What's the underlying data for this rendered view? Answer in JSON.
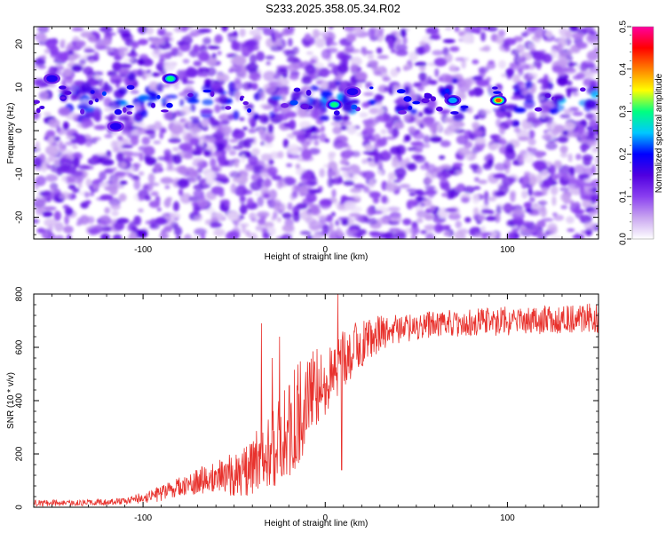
{
  "title": "S233.2025.358.05.34.R02",
  "chart_data": [
    {
      "type": "heatmap",
      "xlabel": "Height of straight line (km)",
      "ylabel": "Frequency (Hz)",
      "xlim": [
        -160,
        150
      ],
      "ylim": [
        -25,
        24
      ],
      "x_ticks": [
        -100,
        0,
        100
      ],
      "y_ticks": [
        -20,
        -10,
        0,
        10,
        20
      ],
      "colorbar": {
        "label": "Normalized spectral amplitude",
        "range": [
          0.0,
          0.5
        ],
        "ticks": [
          0.0,
          0.1,
          0.2,
          0.3,
          0.4,
          0.5
        ],
        "colors": [
          "#ffffff",
          "#c9a6f0",
          "#8a3ff0",
          "#5000e0",
          "#0000ff",
          "#00c8ff",
          "#00ff80",
          "#ffff00",
          "#ff8000",
          "#ff0000",
          "#ff00a0"
        ]
      },
      "ridge": {
        "frequency_hz": 7,
        "peaks": [
          {
            "x": -85,
            "y": 12,
            "v": 0.34
          },
          {
            "x": 5,
            "y": 6,
            "v": 0.3
          },
          {
            "x": 95,
            "y": 7,
            "v": 0.42
          },
          {
            "x": 70,
            "y": 7,
            "v": 0.26
          },
          {
            "x": 15,
            "y": 9,
            "v": 0.22
          },
          {
            "x": -150,
            "y": 12,
            "v": 0.2
          },
          {
            "x": -115,
            "y": 1,
            "v": 0.2
          }
        ]
      }
    },
    {
      "type": "line",
      "xlabel": "Height of straight line (km)",
      "ylabel": "SNR (10 * v/v)",
      "xlim": [
        -160,
        150
      ],
      "ylim": [
        0,
        800
      ],
      "x_ticks": [
        -100,
        0,
        100
      ],
      "y_ticks": [
        0,
        200,
        400,
        600,
        800
      ],
      "series": [
        {
          "name": "SNR",
          "color": "#e8322d",
          "trend": {
            "x": [
              -160,
              -130,
              -110,
              -90,
              -70,
              -55,
              -45,
              -35,
              -25,
              -15,
              -5,
              5,
              15,
              25,
              35,
              50,
              70,
              100,
              150
            ],
            "y": [
              15,
              18,
              22,
              50,
              100,
              120,
              120,
              190,
              250,
              350,
              450,
              520,
              590,
              640,
              660,
              680,
              690,
              700,
              710
            ]
          },
          "amplitude": {
            "x": [
              -160,
              -110,
              -90,
              -60,
              -40,
              -30,
              -20,
              -10,
              0,
              10,
              20,
              30,
              40,
              60,
              100,
              150
            ],
            "y": [
              12,
              12,
              30,
              60,
              110,
              150,
              200,
              180,
              140,
              110,
              90,
              70,
              55,
              50,
              55,
              55
            ]
          },
          "spikes": [
            {
              "x": -35,
              "y": 690
            },
            {
              "x": -29,
              "y": 560
            },
            {
              "x": -25,
              "y": 640
            },
            {
              "x": 7,
              "y": 800
            },
            {
              "x": 9,
              "y": 140
            }
          ]
        }
      ]
    }
  ]
}
